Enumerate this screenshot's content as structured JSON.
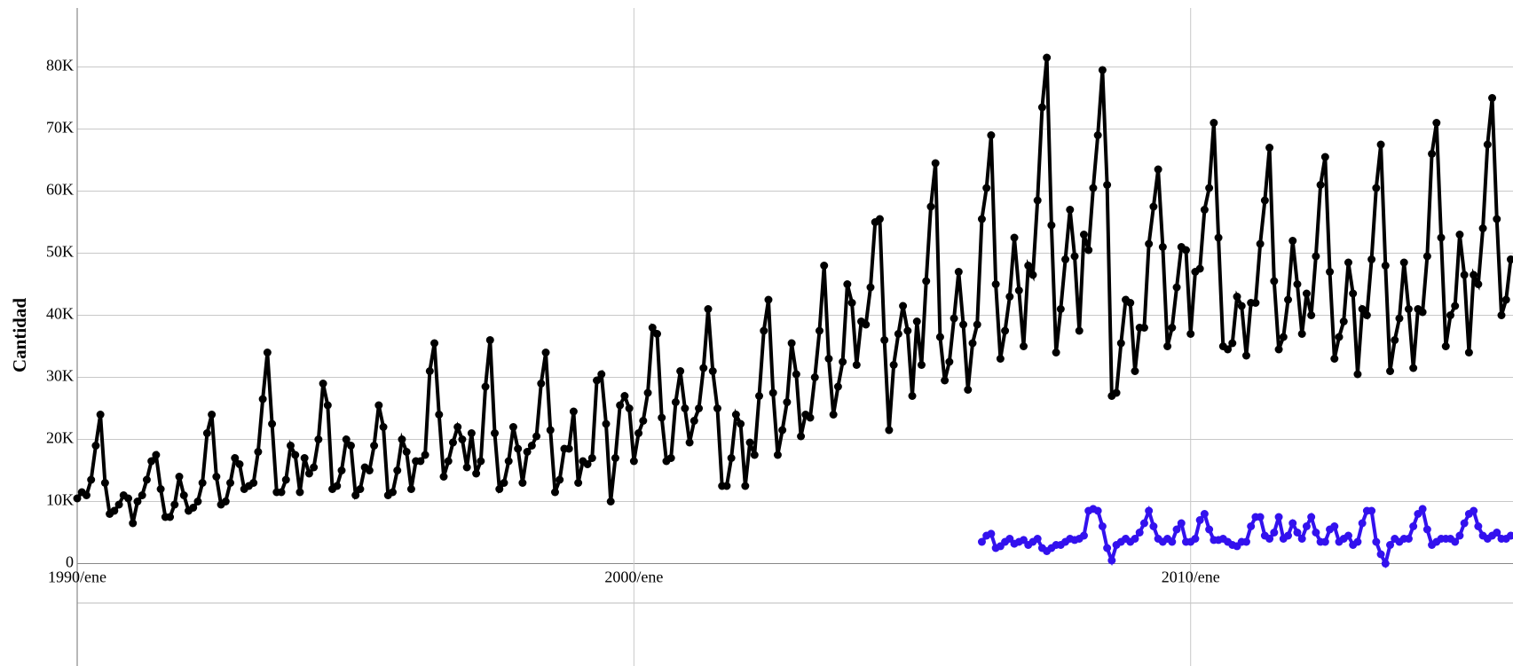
{
  "chart_data": {
    "type": "line",
    "y_label": "Cantidad",
    "categories": [
      "1990/ene",
      null,
      null,
      null,
      null,
      null,
      null,
      null,
      null,
      null,
      null,
      null,
      null,
      null,
      null,
      null,
      null,
      null,
      null,
      null,
      null,
      null,
      null,
      null,
      null,
      null,
      null,
      null,
      null,
      null,
      null,
      null,
      null,
      null,
      null,
      null,
      null,
      null,
      null,
      null,
      null,
      null,
      null,
      null,
      null,
      null,
      null,
      null,
      null,
      null,
      null,
      null,
      null,
      null,
      null,
      null,
      null,
      null,
      null,
      null,
      null,
      null,
      null,
      null,
      null,
      null,
      null,
      null,
      null,
      null,
      null,
      null,
      null,
      null,
      null,
      null,
      null,
      null,
      null,
      null,
      null,
      null,
      null,
      null,
      null,
      null,
      null,
      null,
      null,
      null,
      null,
      null,
      null,
      null,
      null,
      null,
      null,
      null,
      null,
      null,
      null,
      null,
      null,
      null,
      null,
      null,
      null,
      null,
      null,
      null,
      null,
      null,
      null,
      null,
      null,
      null,
      null,
      null,
      null,
      null,
      "2000/ene",
      null,
      null,
      null,
      null,
      null,
      null,
      null,
      null,
      null,
      null,
      null,
      null,
      null,
      null,
      null,
      null,
      null,
      null,
      null,
      null,
      null,
      null,
      null,
      null,
      null,
      null,
      null,
      null,
      null,
      null,
      null,
      null,
      null,
      null,
      null,
      null,
      null,
      null,
      null,
      null,
      null,
      null,
      null,
      null,
      null,
      null,
      null,
      null,
      null,
      null,
      null,
      null,
      null,
      null,
      null,
      null,
      null,
      null,
      null,
      null,
      null,
      null,
      null,
      null,
      null,
      null,
      null,
      null,
      null,
      null,
      null,
      null,
      null,
      null,
      null,
      null,
      null,
      null,
      null,
      null,
      null,
      null,
      null,
      null,
      null,
      null,
      null,
      null,
      null,
      null,
      null,
      null,
      null,
      null,
      null,
      null,
      null,
      null,
      null,
      null,
      null,
      null,
      null,
      null,
      null,
      null,
      null,
      null,
      null,
      null,
      null,
      null,
      null,
      null,
      null,
      null,
      null,
      null,
      null,
      "2010/ene",
      null,
      null,
      null,
      null,
      null,
      null,
      null,
      null,
      null,
      null,
      null,
      null,
      null,
      null,
      null,
      null,
      null,
      null,
      null,
      null,
      null,
      null,
      null,
      null,
      null,
      null,
      null,
      null,
      null,
      null,
      null,
      null,
      null,
      null,
      null,
      null,
      null,
      null,
      null,
      null,
      null,
      null,
      null,
      null,
      null,
      null,
      null,
      null,
      null,
      null,
      null,
      null,
      null,
      null,
      null,
      null,
      null,
      null,
      null,
      null,
      null,
      null,
      null,
      null,
      null,
      null,
      null,
      null,
      null
    ],
    "series": [
      {
        "color": "#000000",
        "values": [
          10500,
          11500,
          11000,
          13500,
          19000,
          24000,
          13000,
          8000,
          8500,
          9500,
          11000,
          10500,
          6500,
          10000,
          11000,
          13500,
          16500,
          17500,
          12000,
          7500,
          7500,
          9500,
          14000,
          11000,
          8500,
          9000,
          10000,
          13000,
          21000,
          24000,
          14000,
          9500,
          10000,
          13000,
          17000,
          16000,
          12000,
          12500,
          13000,
          18000,
          26500,
          34000,
          22500,
          11500,
          11500,
          13500,
          19000,
          17500,
          11500,
          17000,
          14500,
          15500,
          20000,
          29000,
          25500,
          12000,
          12500,
          15000,
          20000,
          19000,
          11000,
          12000,
          15500,
          15000,
          19000,
          25500,
          22000,
          11000,
          11500,
          15000,
          20000,
          18000,
          12000,
          16500,
          16500,
          17500,
          31000,
          35500,
          24000,
          14000,
          16500,
          19500,
          22000,
          20000,
          15500,
          21000,
          14500,
          16500,
          28500,
          36000,
          21000,
          12000,
          13000,
          16500,
          22000,
          18500,
          13000,
          18000,
          19000,
          20500,
          29000,
          34000,
          21500,
          11500,
          13500,
          18500,
          18500,
          24500,
          13000,
          16500,
          16000,
          17000,
          29500,
          30500,
          22500,
          10000,
          17000,
          25500,
          27000,
          25000,
          16500,
          21000,
          23000,
          27500,
          38000,
          37000,
          23500,
          16500,
          17000,
          26000,
          31000,
          25000,
          19500,
          23000,
          25000,
          31500,
          41000,
          31000,
          25000,
          12500,
          12500,
          17000,
          24000,
          22500,
          12500,
          19500,
          17500,
          27000,
          37500,
          42500,
          27500,
          17500,
          21500,
          26000,
          35500,
          30500,
          20500,
          24000,
          23500,
          30000,
          37500,
          48000,
          33000,
          24000,
          28500,
          32500,
          45000,
          42000,
          32000,
          39000,
          38500,
          44500,
          55000,
          55500,
          36000,
          21500,
          32000,
          37000,
          41500,
          37500,
          27000,
          39000,
          32000,
          45500,
          57500,
          64500,
          36500,
          29500,
          32500,
          39500,
          47000,
          38500,
          28000,
          35500,
          38500,
          55500,
          60500,
          69000,
          45000,
          33000,
          37500,
          43000,
          52500,
          44000,
          35000,
          48000,
          46500,
          58500,
          73500,
          81500,
          54500,
          34000,
          41000,
          49000,
          57000,
          49500,
          37500,
          53000,
          50500,
          60500,
          69000,
          79500,
          61000,
          27000,
          27500,
          35500,
          42500,
          42000,
          31000,
          38000,
          38000,
          51500,
          57500,
          63500,
          51000,
          35000,
          38000,
          44500,
          51000,
          50500,
          37000,
          47000,
          47500,
          57000,
          60500,
          71000,
          52500,
          35000,
          34500,
          35500,
          43000,
          41500,
          33500,
          42000,
          42000,
          51500,
          58500,
          67000,
          45500,
          34500,
          36500,
          42500,
          52000,
          45000,
          37000,
          43500,
          40000,
          49500,
          61000,
          65500,
          47000,
          33000,
          36500,
          39000,
          48500,
          43500,
          30500,
          41000,
          40000,
          49000,
          60500,
          67500,
          48000,
          31000,
          36000,
          39500,
          48500,
          41000,
          31500,
          41000,
          40500,
          49500,
          66000,
          71000,
          52500,
          35000,
          40000,
          41500,
          53000,
          46500,
          34000,
          46500,
          45000,
          54000,
          67500,
          75000,
          55500,
          40000,
          42500,
          49000
        ]
      },
      {
        "color": "#3311ee",
        "values": [
          null,
          null,
          null,
          null,
          null,
          null,
          null,
          null,
          null,
          null,
          null,
          null,
          null,
          null,
          null,
          null,
          null,
          null,
          null,
          null,
          null,
          null,
          null,
          null,
          null,
          null,
          null,
          null,
          null,
          null,
          null,
          null,
          null,
          null,
          null,
          null,
          null,
          null,
          null,
          null,
          null,
          null,
          null,
          null,
          null,
          null,
          null,
          null,
          null,
          null,
          null,
          null,
          null,
          null,
          null,
          null,
          null,
          null,
          null,
          null,
          null,
          null,
          null,
          null,
          null,
          null,
          null,
          null,
          null,
          null,
          null,
          null,
          null,
          null,
          null,
          null,
          null,
          null,
          null,
          null,
          null,
          null,
          null,
          null,
          null,
          null,
          null,
          null,
          null,
          null,
          null,
          null,
          null,
          null,
          null,
          null,
          null,
          null,
          null,
          null,
          null,
          null,
          null,
          null,
          null,
          null,
          null,
          null,
          null,
          null,
          null,
          null,
          null,
          null,
          null,
          null,
          null,
          null,
          null,
          null,
          null,
          null,
          null,
          null,
          null,
          null,
          null,
          null,
          null,
          null,
          null,
          null,
          null,
          null,
          null,
          null,
          null,
          null,
          null,
          null,
          null,
          null,
          null,
          null,
          null,
          null,
          null,
          null,
          null,
          null,
          null,
          null,
          null,
          null,
          null,
          null,
          null,
          null,
          null,
          null,
          null,
          null,
          null,
          null,
          null,
          null,
          null,
          null,
          null,
          null,
          null,
          null,
          null,
          null,
          null,
          null,
          null,
          null,
          null,
          null,
          null,
          null,
          null,
          null,
          null,
          null,
          null,
          null,
          null,
          null,
          null,
          null,
          null,
          null,
          null,
          3500,
          4500,
          4800,
          2500,
          2800,
          3500,
          4000,
          3200,
          3500,
          3800,
          3000,
          3500,
          4000,
          2500,
          2000,
          2500,
          3000,
          3000,
          3500,
          4000,
          3800,
          4000,
          4500,
          8500,
          8800,
          8500,
          6000,
          2500,
          500,
          3000,
          3500,
          4000,
          3500,
          4000,
          5000,
          6500,
          8500,
          6000,
          4000,
          3500,
          4000,
          3500,
          5500,
          6500,
          3500,
          3500,
          4000,
          7000,
          8000,
          5500,
          3800,
          3800,
          4000,
          3500,
          3000,
          2800,
          3500,
          3500,
          6000,
          7500,
          7500,
          4500,
          4000,
          5000,
          7500,
          4000,
          4500,
          6500,
          5000,
          4000,
          6000,
          7500,
          5000,
          3500,
          3500,
          5500,
          6000,
          3500,
          4000,
          4500,
          3000,
          3500,
          6500,
          8500,
          8500,
          3500,
          1500,
          0,
          3000,
          4000,
          3500,
          4000,
          4000,
          6000,
          8000,
          8800,
          5500,
          3000,
          3500,
          4000,
          4000,
          4000,
          3500,
          4500,
          6500,
          8000,
          8500,
          6000,
          4500,
          4000,
          4500,
          5000,
          4000,
          4000,
          4500
        ]
      }
    ],
    "ylim": [
      -16500,
      89500
    ],
    "yticks": [
      0,
      {
        "value": 10000,
        "label": "10K"
      },
      {
        "value": 20000,
        "label": "20K"
      },
      {
        "value": 30000,
        "label": "30K"
      },
      {
        "value": 40000,
        "label": "40K"
      },
      {
        "value": 50000,
        "label": "50K"
      },
      {
        "value": 60000,
        "label": "60K"
      },
      {
        "value": 70000,
        "label": "70K"
      },
      {
        "value": 80000,
        "label": "80K"
      }
    ],
    "grid": true,
    "markers": true
  }
}
